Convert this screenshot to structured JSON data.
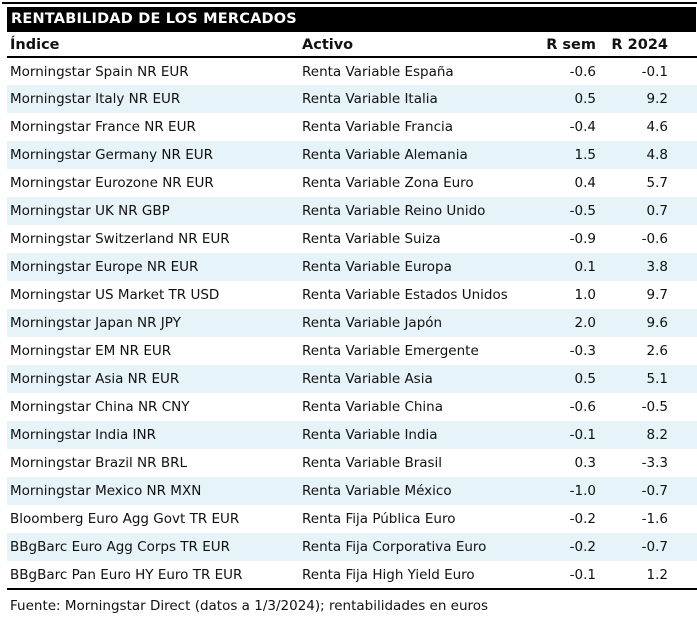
{
  "header": {
    "title": "RENTABILIDAD DE LOS MERCADOS"
  },
  "footer": {
    "source": "Fuente: Morningstar Direct (datos a 1/3/2024); rentabilidades en euros"
  },
  "colors": {
    "title_bg": "#000000",
    "title_text": "#ffffff",
    "row_stripe": "#e6f3f8",
    "rule": "#000000",
    "text": "#111111"
  },
  "chart_data": {
    "type": "table",
    "title": "RENTABILIDAD DE LOS MERCADOS",
    "columns": [
      "Índice",
      "Activo",
      "R sem",
      "R 2024"
    ],
    "rows": [
      [
        "Morningstar Spain NR EUR",
        "Renta Variable España",
        "-0.6",
        "-0.1"
      ],
      [
        "Morningstar Italy NR EUR",
        "Renta Variable Italia",
        "0.5",
        "9.2"
      ],
      [
        "Morningstar France NR EUR",
        "Renta Variable Francia",
        "-0.4",
        "4.6"
      ],
      [
        "Morningstar Germany NR EUR",
        "Renta Variable Alemania",
        "1.5",
        "4.8"
      ],
      [
        "Morningstar Eurozone NR EUR",
        "Renta Variable Zona Euro",
        "0.4",
        "5.7"
      ],
      [
        "Morningstar UK NR GBP",
        "Renta Variable Reino Unido",
        "-0.5",
        "0.7"
      ],
      [
        "Morningstar Switzerland NR EUR",
        "Renta Variable Suiza",
        "-0.9",
        "-0.6"
      ],
      [
        "Morningstar Europe NR EUR",
        "Renta Variable Europa",
        "0.1",
        "3.8"
      ],
      [
        "Morningstar US Market TR USD",
        "Renta Variable Estados Unidos",
        "1.0",
        "9.7"
      ],
      [
        "Morningstar Japan NR JPY",
        "Renta Variable Japón",
        "2.0",
        "9.6"
      ],
      [
        "Morningstar EM NR EUR",
        "Renta Variable Emergente",
        "-0.3",
        "2.6"
      ],
      [
        "Morningstar Asia NR EUR",
        "Renta Variable Asia",
        "0.5",
        "5.1"
      ],
      [
        "Morningstar China NR CNY",
        "Renta Variable China",
        "-0.6",
        "-0.5"
      ],
      [
        "Morningstar India INR",
        "Renta Variable India",
        "-0.1",
        "8.2"
      ],
      [
        "Morningstar Brazil NR BRL",
        "Renta Variable Brasil",
        "0.3",
        "-3.3"
      ],
      [
        "Morningstar Mexico NR MXN",
        "Renta Variable México",
        "-1.0",
        "-0.7"
      ],
      [
        "Bloomberg Euro Agg Govt TR EUR",
        "Renta Fija Pública Euro",
        "-0.2",
        "-1.6"
      ],
      [
        "BBgBarc Euro Agg Corps TR EUR",
        "Renta Fija Corporativa Euro",
        "-0.2",
        "-0.7"
      ],
      [
        "BBgBarc Pan Euro HY Euro TR EUR",
        "Renta Fija High Yield Euro",
        "-0.1",
        "1.2"
      ]
    ],
    "source": "Fuente: Morningstar Direct (datos a 1/3/2024); rentabilidades en euros",
    "layout": {
      "stripe": "even rows shaded light blue",
      "grid": "horizontal rules under header and below last row only",
      "numeric_alignment": "right"
    }
  }
}
